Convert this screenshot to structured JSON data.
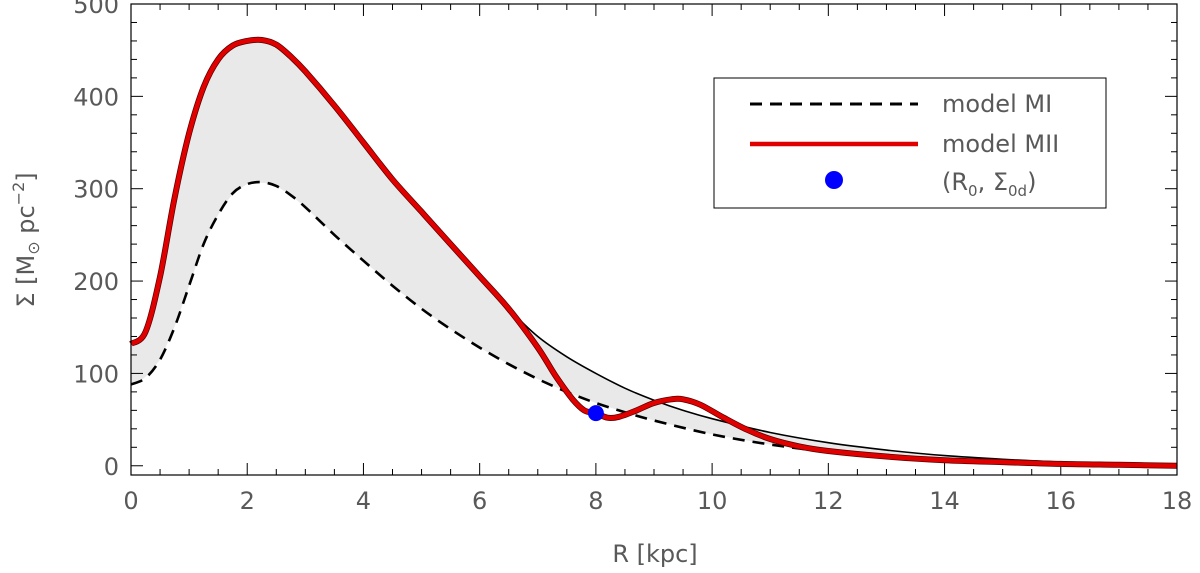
{
  "chart_data": {
    "type": "line",
    "xlabel": "R [kpc]",
    "ylabel": "Σ [M⊙ pc⁻²]",
    "xlim": [
      0,
      18
    ],
    "ylim": [
      -10,
      500
    ],
    "x_ticks": [
      "0",
      "2",
      "4",
      "6",
      "8",
      "10",
      "12",
      "14",
      "16",
      "18"
    ],
    "y_ticks": [
      "0",
      "100",
      "200",
      "300",
      "400",
      "500"
    ],
    "x_tick_values": [
      0,
      2,
      4,
      6,
      8,
      10,
      12,
      14,
      16,
      18
    ],
    "y_tick_values": [
      0,
      100,
      200,
      300,
      400,
      500
    ],
    "legend_position": "top-right",
    "series": [
      {
        "name": "model MI",
        "style": "dashed",
        "color": "#000000",
        "x": [
          0,
          0.25,
          0.5,
          0.75,
          1,
          1.25,
          1.5,
          1.75,
          2,
          2.25,
          2.5,
          2.75,
          3,
          3.5,
          4,
          4.5,
          5,
          5.5,
          6,
          6.5,
          7,
          7.5,
          8,
          8.5,
          9,
          10,
          11,
          12,
          13,
          14,
          15,
          16,
          17,
          18
        ],
        "y": [
          88,
          95,
          115,
          150,
          195,
          240,
          272,
          295,
          305,
          307,
          303,
          293,
          280,
          250,
          222,
          195,
          170,
          148,
          128,
          110,
          94,
          80,
          68,
          58,
          49,
          34,
          23,
          15,
          10,
          6,
          4,
          2,
          1,
          0
        ]
      },
      {
        "name": "model MII",
        "style": "solid",
        "color": "#e00000",
        "x": [
          0,
          0.25,
          0.5,
          0.75,
          1,
          1.25,
          1.5,
          1.75,
          2,
          2.25,
          2.5,
          2.75,
          3,
          3.5,
          4,
          4.5,
          5,
          5.5,
          6,
          6.5,
          7,
          7.3,
          7.6,
          7.8,
          8,
          8.2,
          8.4,
          8.7,
          9,
          9.3,
          9.5,
          9.8,
          10.2,
          10.6,
          11,
          11.5,
          12,
          13,
          14,
          15,
          16,
          17,
          18
        ],
        "y": [
          132,
          145,
          205,
          290,
          360,
          410,
          440,
          455,
          460,
          461,
          456,
          443,
          427,
          390,
          350,
          310,
          275,
          240,
          205,
          170,
          128,
          98,
          72,
          60,
          57,
          52,
          53,
          60,
          68,
          72,
          72,
          66,
          52,
          39,
          29,
          21,
          16,
          10,
          6,
          4,
          2,
          1,
          0
        ]
      },
      {
        "name": "",
        "style": "solid-thin",
        "color": "#000000",
        "x": [
          0,
          0.25,
          0.5,
          0.75,
          1,
          1.25,
          1.5,
          1.75,
          2,
          2.25,
          2.5,
          2.75,
          3,
          3.5,
          4,
          4.5,
          5,
          5.5,
          6,
          6.5,
          7,
          7.5,
          8,
          8.5,
          9,
          9.5,
          10,
          11,
          12,
          13,
          14,
          15,
          16,
          17,
          18
        ],
        "y": [
          132,
          145,
          205,
          290,
          360,
          410,
          440,
          455,
          460,
          461,
          456,
          443,
          427,
          390,
          350,
          310,
          275,
          240,
          205,
          170,
          140,
          118,
          100,
          84,
          71,
          60,
          51,
          36,
          25,
          17,
          11,
          7,
          4,
          2,
          0
        ]
      }
    ],
    "point": {
      "label": "(R₀, Σ₀d)",
      "x": 8.0,
      "y": 57,
      "color": "#0000ff"
    }
  },
  "legend": {
    "items": [
      {
        "label": "model MI"
      },
      {
        "label": "model MII"
      },
      {
        "label": "(R",
        "sub0": "0",
        "mid": ", Σ",
        "sub1": "0d",
        "end": ")"
      }
    ]
  },
  "axes": {
    "xlabel": "R [kpc]",
    "ylabel_main": "Σ [M",
    "ylabel_sun": "⊙",
    "ylabel_unit": " pc",
    "ylabel_exp": "−2",
    "ylabel_close": "]"
  }
}
